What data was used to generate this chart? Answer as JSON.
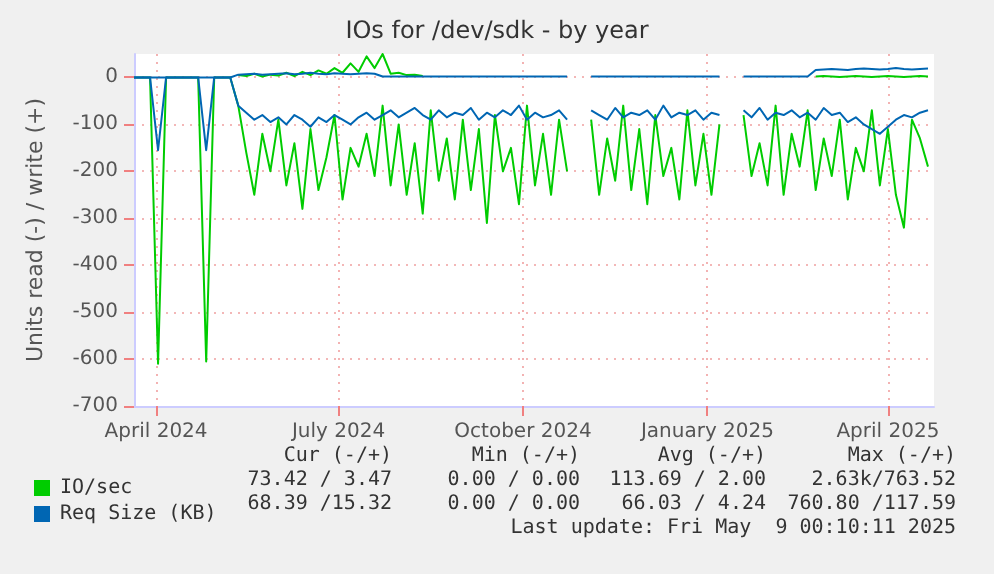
{
  "chart_data": {
    "type": "line",
    "title": "IOs for /dev/sdk - by year",
    "ylabel": "Units read (-) / write (+)",
    "x": [
      "2024-03-21",
      "2024-03-25",
      "2024-03-29",
      "2024-04-02",
      "2024-04-06",
      "2024-04-10",
      "2024-04-14",
      "2024-04-18",
      "2024-04-22",
      "2024-04-26",
      "2024-04-30",
      "2024-05-04",
      "2024-05-08",
      "2024-05-12",
      "2024-05-16",
      "2024-05-20",
      "2024-05-24",
      "2024-05-28",
      "2024-06-01",
      "2024-06-05",
      "2024-06-09",
      "2024-06-13",
      "2024-06-17",
      "2024-06-21",
      "2024-06-25",
      "2024-06-29",
      "2024-07-03",
      "2024-07-07",
      "2024-07-11",
      "2024-07-15",
      "2024-07-19",
      "2024-07-23",
      "2024-07-27",
      "2024-07-31",
      "2024-08-04",
      "2024-08-08",
      "2024-08-12",
      "2024-08-16",
      "2024-08-20",
      "2024-08-24",
      "2024-08-28",
      "2024-09-01",
      "2024-09-05",
      "2024-09-09",
      "2024-09-13",
      "2024-09-17",
      "2024-09-21",
      "2024-09-25",
      "2024-09-29",
      "2024-10-03",
      "2024-10-07",
      "2024-10-11",
      "2024-10-15",
      "2024-10-19",
      "2024-10-23",
      "2024-10-27",
      "2024-10-31",
      "2024-11-04",
      "2024-11-08",
      "2024-11-12",
      "2024-11-16",
      "2024-11-20",
      "2024-11-24",
      "2024-11-28",
      "2024-12-02",
      "2024-12-06",
      "2024-12-10",
      "2024-12-14",
      "2024-12-18",
      "2024-12-22",
      "2024-12-26",
      "2024-12-30",
      "2025-01-03",
      "2025-01-07",
      "2025-01-11",
      "2025-01-15",
      "2025-01-19",
      "2025-01-23",
      "2025-01-27",
      "2025-01-31",
      "2025-02-04",
      "2025-02-08",
      "2025-02-12",
      "2025-02-16",
      "2025-02-20",
      "2025-02-24",
      "2025-02-28",
      "2025-03-04",
      "2025-03-08",
      "2025-03-12",
      "2025-03-16",
      "2025-03-20",
      "2025-03-24",
      "2025-03-28",
      "2025-04-01",
      "2025-04-05",
      "2025-04-09",
      "2025-04-13",
      "2025-04-17",
      "2025-04-21"
    ],
    "series": [
      {
        "name": "IO/sec",
        "color": "#00cc00",
        "values": [
          0,
          0,
          0,
          -610,
          0,
          0,
          0,
          0,
          0,
          -605,
          0,
          0,
          0,
          -60,
          -160,
          -250,
          -120,
          -200,
          -90,
          -230,
          -140,
          -280,
          -110,
          -240,
          -170,
          -80,
          -260,
          -150,
          -190,
          -120,
          -210,
          -60,
          -230,
          -100,
          -250,
          -140,
          -290,
          -70,
          -220,
          -130,
          -260,
          -90,
          -240,
          -110,
          -310,
          -80,
          -200,
          -150,
          -270,
          -60,
          -230,
          -120,
          -250,
          -90,
          -200,
          null,
          null,
          -90,
          -250,
          -130,
          -220,
          -60,
          -240,
          -110,
          -270,
          -80,
          -210,
          -150,
          -260,
          -70,
          -230,
          -120,
          -250,
          -100,
          null,
          null,
          -80,
          -210,
          -140,
          -230,
          -60,
          -250,
          -120,
          -190,
          -70,
          -240,
          -130,
          -210,
          -90,
          -260,
          -150,
          -200,
          -70,
          -230,
          -110,
          -250,
          -320,
          -90,
          -130,
          -190
        ]
      },
      {
        "color": "#00cc00",
        "values": [
          null,
          null,
          null,
          null,
          null,
          null,
          null,
          null,
          null,
          null,
          null,
          null,
          null,
          5,
          3,
          8,
          2,
          6,
          4,
          10,
          3,
          12,
          5,
          15,
          8,
          20,
          10,
          30,
          12,
          45,
          20,
          50,
          8,
          10,
          5,
          6,
          3,
          null,
          null,
          null,
          null,
          null,
          null,
          null,
          null,
          null,
          null,
          null,
          null,
          null,
          null,
          null,
          null,
          null,
          null,
          null,
          null,
          null,
          null,
          null,
          null,
          null,
          null,
          null,
          null,
          null,
          null,
          null,
          null,
          null,
          null,
          null,
          null,
          null,
          null,
          null,
          null,
          null,
          null,
          null,
          null,
          null,
          null,
          null,
          null,
          2,
          3,
          2,
          1,
          2,
          3,
          2,
          1,
          2,
          3,
          2,
          1,
          2,
          3,
          2
        ]
      },
      {
        "name": "Req Size (KB)",
        "color": "#0066b3",
        "values": [
          0,
          0,
          0,
          -155,
          0,
          0,
          0,
          0,
          0,
          -155,
          0,
          0,
          0,
          -60,
          -75,
          -90,
          -80,
          -95,
          -85,
          -100,
          -80,
          -90,
          -105,
          -85,
          -95,
          -80,
          -90,
          -100,
          -85,
          -75,
          -90,
          -80,
          -70,
          -85,
          -75,
          -65,
          -80,
          -90,
          -70,
          -85,
          -75,
          -80,
          -65,
          -90,
          -75,
          -85,
          -70,
          -80,
          -60,
          -90,
          -75,
          -85,
          -80,
          -70,
          -90,
          null,
          null,
          -70,
          -80,
          -90,
          -65,
          -85,
          -75,
          -80,
          -70,
          -90,
          -60,
          -85,
          -75,
          -80,
          -70,
          -90,
          -75,
          -80,
          null,
          null,
          -70,
          -85,
          -65,
          -90,
          -75,
          -80,
          -70,
          -85,
          -75,
          -90,
          -65,
          -80,
          -75,
          -95,
          -85,
          -100,
          -110,
          -120,
          -105,
          -90,
          -80,
          -85,
          -75,
          -70
        ]
      },
      {
        "color": "#0066b3",
        "values": [
          0,
          0,
          0,
          0,
          0,
          0,
          0,
          0,
          0,
          0,
          0,
          0,
          0,
          6,
          7,
          8,
          6,
          7,
          8,
          9,
          7,
          8,
          10,
          8,
          7,
          9,
          8,
          7,
          8,
          9,
          8,
          2,
          2,
          2,
          2,
          2,
          2,
          2,
          2,
          2,
          2,
          2,
          2,
          2,
          2,
          2,
          2,
          2,
          2,
          2,
          2,
          2,
          2,
          2,
          2,
          null,
          null,
          2,
          2,
          2,
          2,
          2,
          2,
          2,
          2,
          2,
          2,
          2,
          2,
          2,
          2,
          2,
          2,
          2,
          null,
          null,
          2,
          2,
          2,
          2,
          2,
          2,
          2,
          2,
          2,
          16,
          17,
          18,
          17,
          16,
          18,
          19,
          18,
          17,
          18,
          20,
          18,
          17,
          18,
          19
        ]
      }
    ],
    "xlim": [
      "2024-03-21",
      "2025-04-24"
    ],
    "xticks": [
      {
        "value": "2024-04-01",
        "label": "April 2024"
      },
      {
        "value": "2024-07-01",
        "label": "July 2024"
      },
      {
        "value": "2024-10-01",
        "label": "October 2024"
      },
      {
        "value": "2025-01-01",
        "label": "January 2025"
      },
      {
        "value": "2025-04-01",
        "label": "April 2025"
      }
    ],
    "ylim": [
      -700,
      50
    ],
    "yticks": [
      -700,
      -600,
      -500,
      -400,
      -300,
      -200,
      -100,
      0
    ],
    "grid": true,
    "legend": "bottom left",
    "marker": "none",
    "annotations": [
      "Cur (-/+)",
      "Min (-/+)",
      "Avg (-/+)",
      "Max (-/+)",
      "73.42 / 3.47",
      "0.00 / 0.00",
      "113.69 / 2.00",
      "2.63k/763.52",
      "68.39 /15.32",
      "0.00 / 0.00",
      "66.03 / 4.24",
      "760.80 /117.59",
      "Last update: Fri May  9 00:10:11 2025"
    ]
  }
}
